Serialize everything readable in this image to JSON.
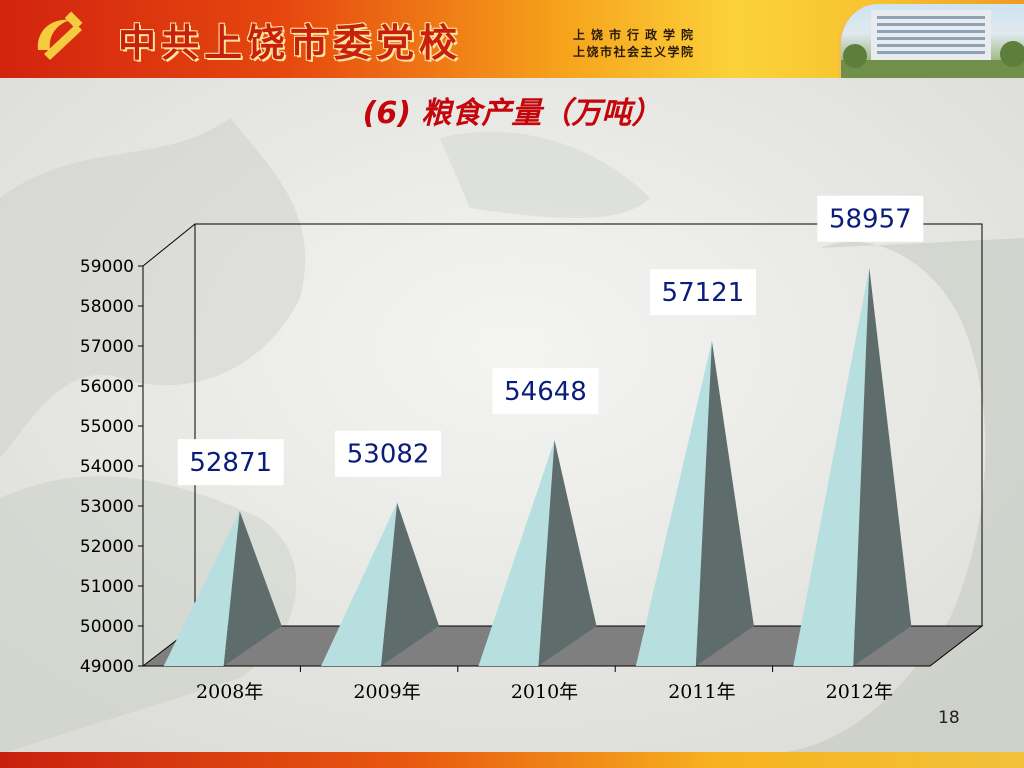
{
  "banner": {
    "title": "中共上饶市委党校",
    "sub1": "上饶市行政学院",
    "sub2": "上饶市社会主义学院"
  },
  "slide": {
    "title": "(6) 粮食产量（万吨）",
    "page_number": "18"
  },
  "colors": {
    "pyramid_light": "#b8dfe0",
    "pyramid_dark": "#5e6c6b",
    "floor": "#7f7f7f",
    "label_text": "#0b1d7a",
    "title": "#c4060b"
  },
  "chart_data": {
    "type": "bar",
    "shape": "pyramid",
    "categories": [
      "2008年",
      "2009年",
      "2010年",
      "2011年",
      "2012年"
    ],
    "values": [
      52871,
      53082,
      54648,
      57121,
      58957
    ],
    "data_labels": [
      "52871",
      "53082",
      "54648",
      "57121",
      "58957"
    ],
    "title": "",
    "xlabel": "",
    "ylabel": "",
    "ylim": [
      49000,
      59000
    ],
    "yticks": [
      49000,
      50000,
      51000,
      52000,
      53000,
      54000,
      55000,
      56000,
      57000,
      58000,
      59000
    ],
    "ytick_labels": [
      "49000",
      "50000",
      "51000",
      "52000",
      "53000",
      "54000",
      "55000",
      "56000",
      "57000",
      "58000",
      "59000"
    ],
    "grid": false,
    "legend": "none",
    "three_d": true
  }
}
